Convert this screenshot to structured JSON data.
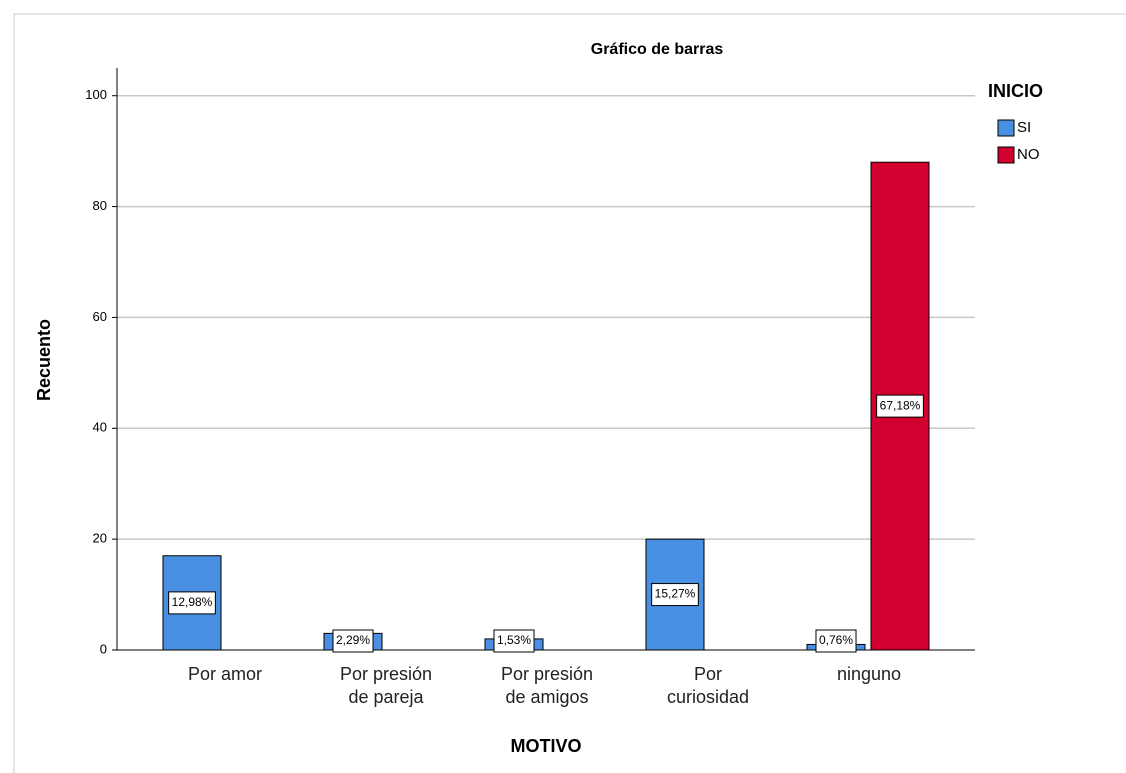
{
  "chart_data": {
    "type": "bar",
    "title": "Gráfico de barras",
    "x_label": "MOTIVO",
    "y_label": "Recuento",
    "legend_title": "INICIO",
    "categories": [
      "Por amor",
      "Por presión\nde pareja",
      "Por presión\nde amigos",
      "Por\ncuriosidad",
      "ninguno"
    ],
    "series": [
      {
        "name": "SI",
        "color": "#4a90e2",
        "values": [
          17,
          3,
          2,
          20,
          1
        ],
        "value_labels": [
          "12,98%",
          "2,29%",
          "1,53%",
          "15,27%",
          "0,76%"
        ]
      },
      {
        "name": "NO",
        "color": "#d2002e",
        "values": [
          null,
          null,
          null,
          null,
          88
        ],
        "value_labels": [
          null,
          null,
          null,
          null,
          "67,18%"
        ]
      }
    ],
    "ylim": [
      0,
      105
    ],
    "yticks": [
      0,
      20,
      40,
      60,
      80,
      100
    ],
    "grid": true,
    "legend": "right"
  }
}
